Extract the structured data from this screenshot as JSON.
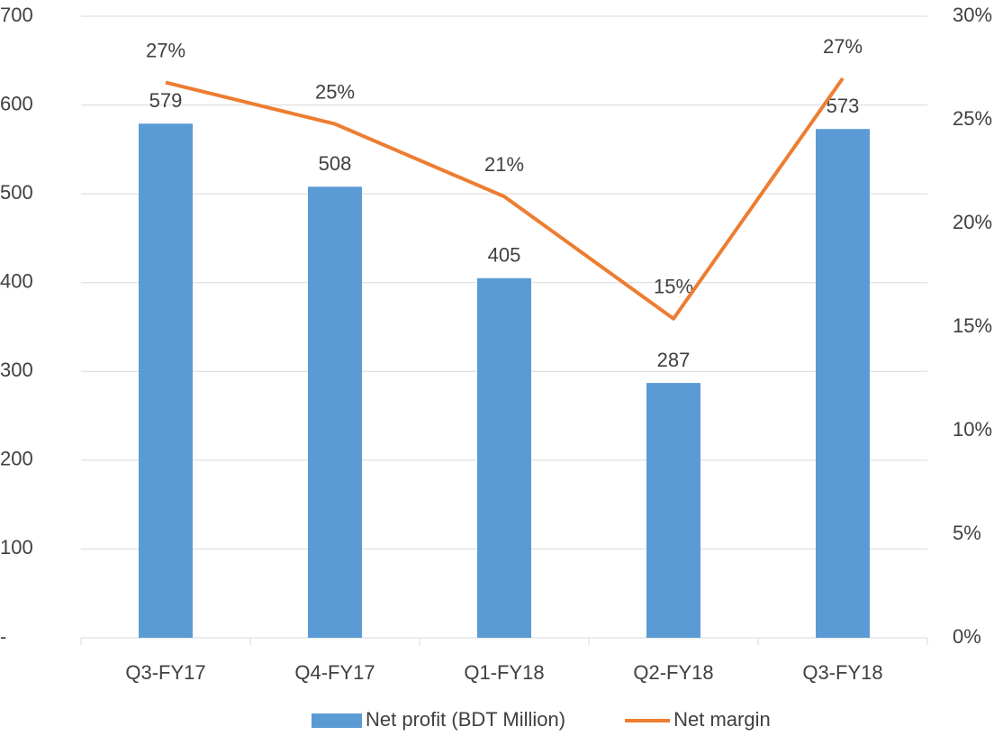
{
  "chart_data": {
    "type": "bar",
    "categories": [
      "Q3-FY17",
      "Q4-FY17",
      "Q1-FY18",
      "Q2-FY18",
      "Q3-FY18"
    ],
    "series": [
      {
        "name": "Net profit (BDT Million)",
        "type": "bar",
        "color": "#5b9bd5",
        "values": [
          579,
          508,
          405,
          287,
          573
        ]
      },
      {
        "name": "Net margin",
        "type": "line",
        "axis": "y2",
        "color": "#ed7d31",
        "values": [
          26.8,
          24.8,
          21.3,
          15.4,
          27.0
        ],
        "value_labels": [
          "27%",
          "25%",
          "21%",
          "15%",
          "27%"
        ]
      }
    ],
    "ylim": [
      0,
      700
    ],
    "yticks": [
      {
        "value": 0,
        "label": "-"
      },
      100,
      200,
      300,
      400,
      500,
      600,
      700
    ],
    "y2lim": [
      0,
      30
    ],
    "y2ticks": [
      {
        "value": 0,
        "label": "0%"
      },
      {
        "value": 5,
        "label": "5%"
      },
      {
        "value": 10,
        "label": "10%"
      },
      {
        "value": 15,
        "label": "15%"
      },
      {
        "value": 20,
        "label": "20%"
      },
      {
        "value": 25,
        "label": "25%"
      },
      {
        "value": 30,
        "label": "30%"
      }
    ],
    "grid": true,
    "legend": "bottom"
  }
}
